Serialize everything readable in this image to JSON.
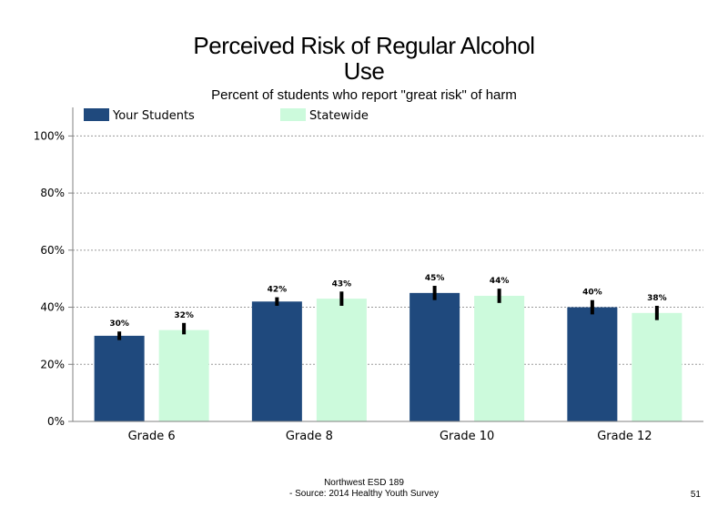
{
  "chart_data": {
    "type": "bar",
    "title_lines": [
      "Perceived Risk of Regular Alcohol",
      "Use"
    ],
    "subtitle": "Percent of students who report \"great risk\" of harm",
    "categories": [
      "Grade 6",
      "Grade 8",
      "Grade 10",
      "Grade 12"
    ],
    "series": [
      {
        "name": "Your Students",
        "color": "#1f497d",
        "values": [
          30,
          42,
          45,
          40
        ],
        "labels": [
          "30%",
          "42%",
          "45%",
          "40%"
        ],
        "error": [
          [
            28.5,
            31.5
          ],
          [
            40.5,
            43.5
          ],
          [
            42.5,
            47.5
          ],
          [
            37.5,
            42.5
          ]
        ]
      },
      {
        "name": "Statewide",
        "color": "#ccfadc",
        "values": [
          32,
          43,
          44,
          38
        ],
        "labels": [
          "32%",
          "43%",
          "44%",
          "38%"
        ],
        "error": [
          [
            30.5,
            34.5
          ],
          [
            40.5,
            45.5
          ],
          [
            41.5,
            46.5
          ],
          [
            35.5,
            40.5
          ]
        ]
      }
    ],
    "ylim": [
      0,
      110
    ],
    "yticks": [
      0,
      20,
      40,
      60,
      80,
      100
    ],
    "ytick_labels": [
      "0%",
      "20%",
      "40%",
      "60%",
      "80%",
      "100%"
    ],
    "grid": true,
    "legend": "top-left",
    "xlabel": "",
    "ylabel": ""
  },
  "footer": {
    "line1": "Northwest ESD  189",
    "line2": "- Source: 2014 Healthy  Youth Survey",
    "page_number": "51"
  }
}
